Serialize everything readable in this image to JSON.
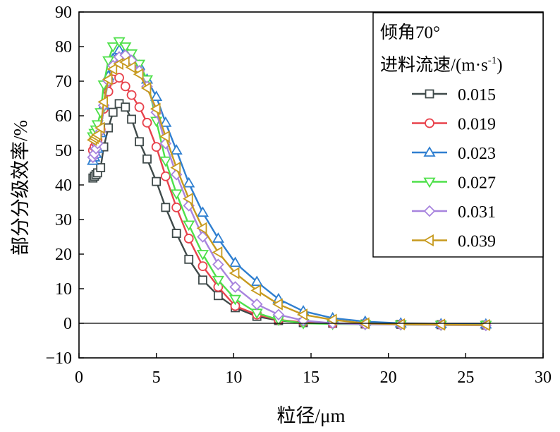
{
  "chart_data": {
    "type": "line",
    "xlabel": "粒径/μm",
    "ylabel": "部分分级效率/%",
    "xlim": [
      0,
      30
    ],
    "ylim": [
      -10,
      90
    ],
    "xticks": [
      0,
      5,
      10,
      15,
      20,
      25,
      30
    ],
    "yticks": [
      -10,
      0,
      10,
      20,
      30,
      40,
      50,
      60,
      70,
      80,
      90
    ],
    "grid": false,
    "legend_position": "top-right",
    "legend_title_lines": [
      "倾角70°",
      "进料流速/(m·s",
      "-1",
      ")"
    ],
    "x": [
      0.9,
      1.0,
      1.1,
      1.2,
      1.4,
      1.6,
      1.9,
      2.2,
      2.6,
      3.0,
      3.4,
      3.9,
      4.4,
      5.0,
      5.6,
      6.3,
      7.1,
      8.0,
      9.0,
      10.1,
      11.5,
      12.9,
      14.5,
      16.4,
      18.5,
      20.8,
      23.4,
      26.3
    ],
    "series": [
      {
        "name": "0.015",
        "color": "#3f4a4a",
        "marker": "square",
        "values": [
          42,
          42.5,
          43,
          43.5,
          45,
          51,
          56.5,
          61,
          63.5,
          62.5,
          59,
          52.5,
          47.5,
          41,
          33.5,
          26,
          18.5,
          12.5,
          8,
          4.5,
          2,
          0.8,
          0.2,
          0,
          -0.2,
          -0.3,
          -0.4,
          -0.5
        ]
      },
      {
        "name": "0.019",
        "color": "#e8424c",
        "marker": "circle",
        "values": [
          50,
          51,
          52,
          53,
          56,
          62,
          67,
          70.5,
          71,
          68.5,
          66,
          62.5,
          58,
          51,
          42.5,
          33.5,
          24.5,
          16.5,
          10.5,
          5,
          2.5,
          1,
          0.3,
          -0.1,
          -0.2,
          -0.3,
          -0.4,
          -0.5
        ]
      },
      {
        "name": "0.023",
        "color": "#2f7fd0",
        "marker": "triangle-up",
        "values": [
          47,
          48,
          49,
          50.5,
          55,
          63,
          71.5,
          76.5,
          79,
          78.5,
          77,
          74.5,
          70.5,
          65.5,
          58,
          50,
          40.5,
          32,
          24.5,
          17.5,
          12,
          7,
          3.5,
          1.5,
          0.5,
          0,
          -0.2,
          -0.3
        ]
      },
      {
        "name": "0.027",
        "color": "#4ee04a",
        "marker": "triangle-down",
        "values": [
          54,
          55,
          56,
          57.5,
          61,
          69,
          76,
          80,
          81.5,
          80,
          78,
          75,
          70.5,
          58.5,
          47,
          37.5,
          28.5,
          20,
          12.5,
          7,
          3,
          1,
          0,
          -0.2,
          -0.3,
          -0.4,
          -0.5,
          -0.5
        ]
      },
      {
        "name": "0.031",
        "color": "#a884de",
        "marker": "diamond",
        "values": [
          48,
          49,
          50.5,
          52,
          55.5,
          63,
          70,
          74.5,
          77,
          77.5,
          76,
          73,
          68.5,
          61,
          52,
          43,
          34,
          25,
          17,
          10.5,
          5.5,
          2.5,
          0.8,
          0,
          -0.3,
          -0.4,
          -0.5,
          -0.6
        ]
      },
      {
        "name": "0.039",
        "color": "#c79a1e",
        "marker": "triangle-left",
        "values": [
          53,
          53.5,
          54,
          54.5,
          56.5,
          64,
          70.5,
          73.5,
          75,
          75.5,
          74,
          72,
          68,
          62,
          54,
          45,
          36,
          27.5,
          20.5,
          14.5,
          9.5,
          5.5,
          2.5,
          1,
          0,
          -0.3,
          -0.4,
          -0.5
        ]
      }
    ]
  }
}
